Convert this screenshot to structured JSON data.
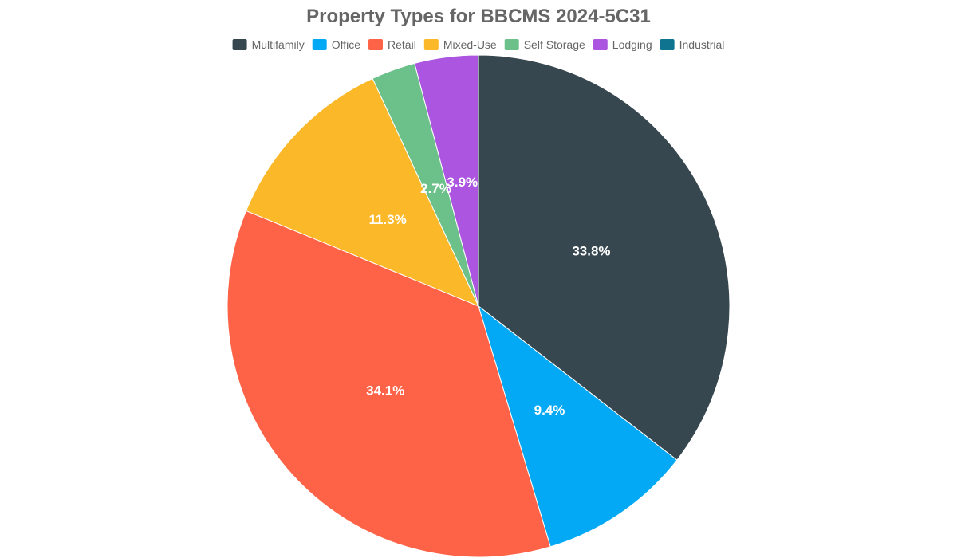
{
  "chart_data": {
    "type": "pie",
    "title": "Property Types for BBCMS 2024-5C31",
    "legend_position": "top",
    "slices": [
      {
        "label": "Multifamily",
        "value": 33.8,
        "display": "33.8%",
        "color": "#37474f"
      },
      {
        "label": "Office",
        "value": 9.4,
        "display": "9.4%",
        "color": "#03a9f4"
      },
      {
        "label": "Retail",
        "value": 34.1,
        "display": "34.1%",
        "color": "#ff6347"
      },
      {
        "label": "Mixed-Use",
        "value": 11.3,
        "display": "11.3%",
        "color": "#fbb829"
      },
      {
        "label": "Self Storage",
        "value": 2.7,
        "display": "2.7%",
        "color": "#6cc18a"
      },
      {
        "label": "Lodging",
        "value": 3.9,
        "display": "3.9%",
        "color": "#ab55e0"
      },
      {
        "label": "Industrial",
        "value": 0,
        "display": "",
        "color": "#0e7490"
      }
    ]
  }
}
